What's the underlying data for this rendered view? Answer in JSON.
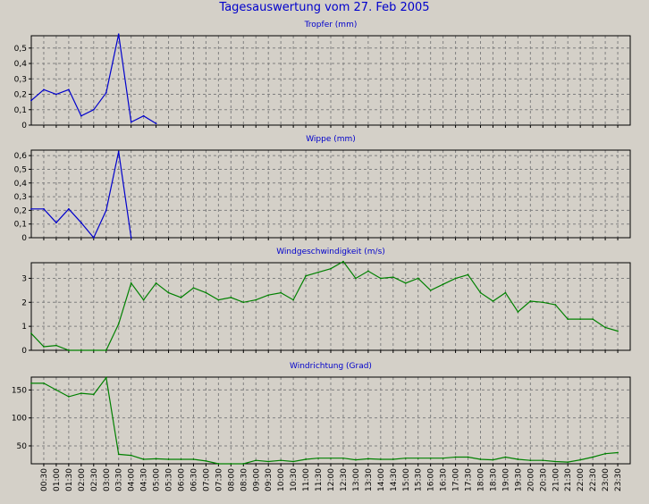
{
  "title": "Tagesauswertung vom 27. Feb 2005",
  "colors": {
    "background": "#d4d0c8",
    "plot_bg": "#d4d0c8",
    "title": "#0000cc",
    "blue_series": "#0000cc",
    "green_series": "#008000",
    "grid": "#808080",
    "axis": "#000000"
  },
  "x_ticks": [
    "00:30",
    "01:00",
    "01:30",
    "02:00",
    "02:30",
    "03:00",
    "03:30",
    "04:00",
    "04:30",
    "05:00",
    "05:30",
    "06:00",
    "06:30",
    "07:00",
    "07:30",
    "08:00",
    "08:30",
    "09:00",
    "09:30",
    "10:00",
    "10:30",
    "11:00",
    "11:30",
    "12:00",
    "12:30",
    "13:00",
    "13:30",
    "14:00",
    "14:30",
    "15:00",
    "15:30",
    "16:00",
    "16:30",
    "17:00",
    "17:30",
    "18:00",
    "18:30",
    "19:00",
    "19:30",
    "20:00",
    "20:30",
    "21:00",
    "21:30",
    "22:00",
    "22:30",
    "23:00",
    "23:30"
  ],
  "chart_data": [
    {
      "type": "line",
      "title": "Tropfer (mm)",
      "color": "blue_series",
      "ylim": [
        0,
        0.58
      ],
      "yticks": [
        0,
        0.1,
        0.2,
        0.3,
        0.4,
        0.5
      ],
      "ytick_labels": [
        "0",
        "0,1",
        "0,2",
        "0,3",
        "0,4",
        "0,5"
      ],
      "grid": true,
      "x": [
        0,
        1,
        2,
        3,
        4,
        5,
        6,
        7,
        8,
        9,
        10
      ],
      "values": [
        0.16,
        0.23,
        0.2,
        0.23,
        0.06,
        0.1,
        0.21,
        0.59,
        0.02,
        0.06,
        0.01
      ]
    },
    {
      "type": "line",
      "title": "Wippe (mm)",
      "color": "blue_series",
      "ylim": [
        0,
        0.64
      ],
      "yticks": [
        0,
        0.1,
        0.2,
        0.3,
        0.4,
        0.5,
        0.6
      ],
      "ytick_labels": [
        "0",
        "0,1",
        "0,2",
        "0,3",
        "0,4",
        "0,5",
        "0,6"
      ],
      "grid": true,
      "x": [
        0,
        1,
        2,
        3,
        4,
        5,
        6,
        7,
        8
      ],
      "values": [
        0.21,
        0.21,
        0.11,
        0.21,
        0.11,
        0.0,
        0.2,
        0.63,
        0.0
      ]
    },
    {
      "type": "line",
      "title": "Windgeschwindigkeit (m/s)",
      "color": "green_series",
      "ylim": [
        0,
        3.65
      ],
      "yticks": [
        0,
        1,
        2,
        3
      ],
      "ytick_labels": [
        "0",
        "1",
        "2",
        "3"
      ],
      "grid": true,
      "x": [
        0,
        1,
        2,
        3,
        4,
        5,
        6,
        7,
        8,
        9,
        10,
        11,
        12,
        13,
        14,
        15,
        16,
        17,
        18,
        19,
        20,
        21,
        22,
        23,
        24,
        25,
        26,
        27,
        28,
        29,
        30,
        31,
        32,
        33,
        34,
        35,
        36,
        37,
        38,
        39,
        40,
        41,
        42,
        43,
        44,
        45,
        46,
        47
      ],
      "values": [
        0.7,
        0.15,
        0.2,
        0.0,
        0.0,
        0.0,
        0.0,
        1.1,
        2.8,
        2.1,
        2.8,
        2.4,
        2.2,
        2.6,
        2.4,
        2.1,
        2.2,
        2.0,
        2.1,
        2.3,
        2.4,
        2.1,
        3.1,
        3.25,
        3.4,
        3.7,
        3.0,
        3.3,
        3.0,
        3.05,
        2.8,
        3.0,
        2.5,
        2.75,
        3.0,
        3.15,
        2.4,
        2.05,
        2.4,
        1.6,
        2.05,
        2.0,
        1.9,
        1.3,
        1.3,
        1.3,
        0.95,
        0.8
      ]
    },
    {
      "type": "line",
      "title": "Windrichtung (Grad)",
      "color": "green_series",
      "ylim": [
        18,
        173
      ],
      "yticks": [
        50,
        100,
        150
      ],
      "ytick_labels": [
        "50",
        "100",
        "150"
      ],
      "grid": true,
      "x": [
        0,
        1,
        2,
        3,
        4,
        5,
        6,
        7,
        8,
        9,
        10,
        11,
        12,
        13,
        14,
        15,
        16,
        17,
        18,
        19,
        20,
        21,
        22,
        23,
        24,
        25,
        26,
        27,
        28,
        29,
        30,
        31,
        32,
        33,
        34,
        35,
        36,
        37,
        38,
        39,
        40,
        41,
        42,
        43,
        44,
        45,
        46,
        47
      ],
      "values": [
        162,
        162,
        150,
        138,
        144,
        142,
        172,
        35,
        33,
        26,
        27,
        26,
        26,
        26,
        23,
        18,
        18,
        18,
        24,
        22,
        24,
        22,
        26,
        28,
        28,
        28,
        25,
        27,
        26,
        26,
        28,
        28,
        28,
        28,
        30,
        30,
        26,
        25,
        30,
        26,
        24,
        24,
        22,
        21,
        25,
        30,
        36,
        38
      ]
    }
  ]
}
